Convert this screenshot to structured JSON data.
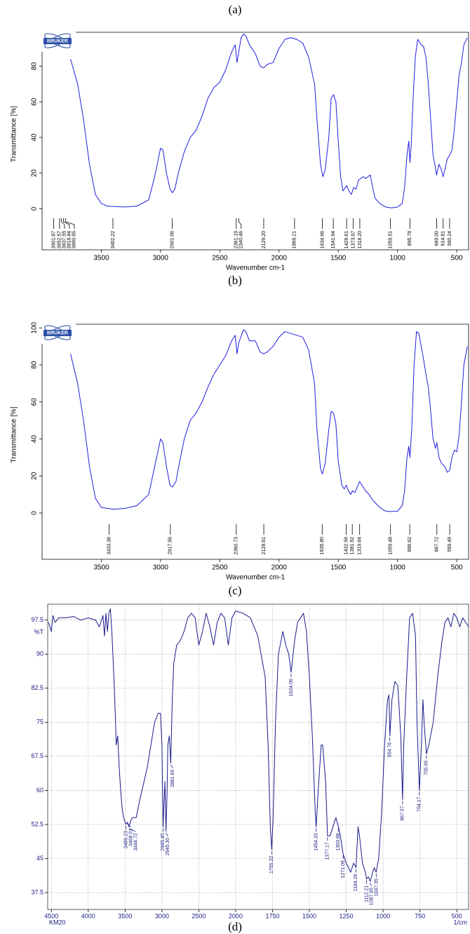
{
  "figure_labels": [
    "(a)",
    "(b)",
    "(c)",
    "(d)"
  ],
  "chart_data": [
    {
      "type": "line",
      "logo": "BRUKER",
      "xlabel": "Wavenumber cm-1",
      "ylabel": "Transmittance [%]",
      "color": "#1f1fe0",
      "xlim": [
        4000,
        400
      ],
      "ylim": [
        -23,
        99
      ],
      "xticks": [
        3500,
        3000,
        2500,
        2000,
        1500,
        1000,
        500
      ],
      "yticks": [
        0,
        20,
        40,
        60,
        80
      ],
      "x": [
        3760,
        3700,
        3650,
        3600,
        3550,
        3500,
        3450,
        3300,
        3200,
        3100,
        3050,
        3000,
        2980,
        2950,
        2920,
        2900,
        2880,
        2850,
        2800,
        2750,
        2700,
        2650,
        2600,
        2550,
        2500,
        2450,
        2400,
        2370,
        2355,
        2345,
        2320,
        2300,
        2280,
        2250,
        2200,
        2160,
        2130,
        2100,
        2050,
        2000,
        1950,
        1900,
        1850,
        1800,
        1750,
        1700,
        1680,
        1650,
        1630,
        1610,
        1580,
        1560,
        1540,
        1520,
        1500,
        1480,
        1460,
        1440,
        1430,
        1410,
        1390,
        1370,
        1350,
        1330,
        1310,
        1290,
        1270,
        1250,
        1230,
        1210,
        1190,
        1150,
        1100,
        1050,
        1000,
        960,
        940,
        920,
        905,
        895,
        885,
        870,
        850,
        830,
        800,
        780,
        760,
        740,
        720,
        700,
        685,
        670,
        650,
        630,
        615,
        600,
        580,
        560,
        540,
        520,
        500,
        480,
        460,
        440,
        410
      ],
      "values": [
        84,
        70,
        50,
        25,
        8,
        3,
        1.5,
        1,
        1.5,
        5,
        18,
        34,
        33,
        20,
        11,
        9,
        11,
        20,
        32,
        40,
        44,
        52,
        62,
        68,
        71,
        78,
        88,
        92,
        82,
        86,
        96,
        98,
        97,
        92,
        87,
        80,
        79,
        81,
        82,
        90,
        95,
        96,
        95,
        93,
        85,
        70,
        50,
        25,
        18,
        22,
        40,
        62,
        64,
        60,
        38,
        18,
        10,
        12,
        13,
        10,
        8,
        12,
        11,
        16,
        17,
        18,
        17,
        18,
        19,
        12,
        6,
        3,
        1,
        0.5,
        1,
        3,
        12,
        30,
        38,
        26,
        35,
        60,
        85,
        95,
        92,
        91,
        85,
        70,
        50,
        30,
        25,
        19,
        25,
        22,
        18,
        22,
        28,
        30,
        33,
        45,
        60,
        75,
        82,
        92,
        96
      ],
      "peak_x": [
        3901.87,
        3852.57,
        3837.55,
        3818.84,
        3800.65,
        3402.22,
        2901.06,
        2361.19,
        2340.46,
        2129.2,
        1869.21,
        1634.66,
        1541.94,
        1429.61,
        1373.97,
        1318.2,
        1059.51,
        895.78,
        669,
        614.81,
        560.24
      ],
      "peak_labels": [
        "3901.87",
        "3852.57",
        "3837.55",
        "3818.84",
        "3800.65",
        "3402.22",
        "2901.06",
        "2361.19",
        "2340.46",
        "2129.20",
        "1869.21",
        "1634.66",
        "1541.94",
        "1429.61",
        "1373.97",
        "1318.20",
        "1059.51",
        "895.78",
        "669.00",
        "614.81",
        "560.24"
      ]
    },
    {
      "type": "line",
      "logo": "BRUKER",
      "xlabel": "Wavenumber cm-1",
      "ylabel": "Transmittance [%]",
      "color": "#1f1fe0",
      "xlim": [
        4000,
        400
      ],
      "ylim": [
        -25,
        102
      ],
      "xticks": [
        3500,
        3000,
        2500,
        2000,
        1500,
        1000,
        500
      ],
      "yticks": [
        0,
        20,
        40,
        60,
        80,
        100
      ],
      "x": [
        3760,
        3700,
        3650,
        3600,
        3550,
        3500,
        3400,
        3300,
        3200,
        3100,
        3050,
        3000,
        2980,
        2950,
        2920,
        2900,
        2870,
        2850,
        2800,
        2750,
        2700,
        2650,
        2600,
        2550,
        2500,
        2450,
        2400,
        2370,
        2355,
        2340,
        2300,
        2280,
        2250,
        2200,
        2160,
        2130,
        2100,
        2050,
        2000,
        1950,
        1900,
        1850,
        1800,
        1750,
        1700,
        1680,
        1650,
        1635,
        1610,
        1580,
        1560,
        1540,
        1520,
        1500,
        1470,
        1450,
        1432,
        1415,
        1395,
        1380,
        1360,
        1340,
        1320,
        1300,
        1270,
        1240,
        1210,
        1180,
        1150,
        1100,
        1050,
        1000,
        960,
        940,
        920,
        905,
        895,
        880,
        860,
        840,
        820,
        800,
        780,
        760,
        740,
        720,
        700,
        680,
        668,
        650,
        630,
        600,
        580,
        560,
        540,
        520,
        500,
        480,
        460,
        440,
        410
      ],
      "values": [
        86,
        70,
        50,
        25,
        8,
        3,
        2,
        2.5,
        4,
        10,
        25,
        40,
        38,
        25,
        15,
        14,
        17,
        24,
        40,
        50,
        54,
        60,
        68,
        75,
        80,
        85,
        93,
        96,
        86,
        92,
        99,
        98,
        93,
        93,
        87,
        86,
        87,
        90,
        95,
        98,
        97,
        96,
        95,
        88,
        70,
        45,
        24,
        21,
        27,
        45,
        55,
        54,
        48,
        28,
        15,
        13,
        15,
        12,
        10,
        12,
        11,
        14,
        17,
        15,
        12,
        10,
        7,
        5,
        3,
        1,
        0.8,
        1,
        4,
        12,
        30,
        36,
        30,
        45,
        80,
        98,
        97,
        90,
        83,
        75,
        68,
        55,
        40,
        35,
        38,
        30,
        27,
        25,
        22,
        23,
        30,
        34,
        33,
        42,
        60,
        80,
        90
      ],
      "peak_x": [
        3433.36,
        2917.56,
        2360.73,
        2128.61,
        1635.8,
        1432.56,
        1381.92,
        1319.64,
        1059.48,
        896.62,
        667.72,
        559.49
      ],
      "peak_labels": [
        "3433.36",
        "2917.56",
        "2360.73",
        "2128.61",
        "1635.80",
        "1432.56",
        "1381.92",
        "1319.64",
        "1059.48",
        "896.62",
        "667.72",
        "559.49"
      ]
    },
    {
      "type": "line",
      "ylabel": "%T",
      "xlabel": "1/cm",
      "sample_label": "KM20",
      "color": "#1a1a8c",
      "grid": true,
      "xlim": [
        4550,
        420
      ],
      "x_scale_break": 2000,
      "x_scale_expansion": 2,
      "ylim": [
        33.8,
        101
      ],
      "xticks": [
        4500,
        4000,
        3500,
        3000,
        2500,
        2000,
        1750,
        1500,
        1250,
        1000,
        750,
        500
      ],
      "yticks": [
        37.5,
        45,
        52.5,
        60,
        67.5,
        75,
        82.5,
        90,
        97.5
      ],
      "x": [
        4540,
        4500,
        4480,
        4450,
        4400,
        4300,
        4200,
        4100,
        4000,
        3900,
        3850,
        3800,
        3780,
        3760,
        3740,
        3720,
        3700,
        3680,
        3660,
        3640,
        3620,
        3600,
        3580,
        3560,
        3540,
        3520,
        3500,
        3489,
        3468,
        3448,
        3420,
        3400,
        3350,
        3300,
        3200,
        3150,
        3100,
        3050,
        3020,
        3000,
        2985,
        2970,
        2960,
        2945,
        2930,
        2920,
        2900,
        2881,
        2860,
        2840,
        2800,
        2750,
        2700,
        2650,
        2600,
        2550,
        2500,
        2450,
        2400,
        2350,
        2300,
        2250,
        2200,
        2150,
        2100,
        2050,
        2000,
        1950,
        1900,
        1850,
        1800,
        1780,
        1765,
        1755,
        1745,
        1730,
        1710,
        1680,
        1660,
        1640,
        1624,
        1600,
        1580,
        1560,
        1540,
        1520,
        1500,
        1480,
        1460,
        1454,
        1440,
        1420,
        1410,
        1390,
        1377,
        1360,
        1340,
        1320,
        1303,
        1290,
        1271,
        1250,
        1220,
        1200,
        1184,
        1170,
        1160,
        1140,
        1120,
        1112,
        1100,
        1087,
        1070,
        1060,
        1047,
        1030,
        1010,
        990,
        970,
        960,
        954,
        940,
        920,
        900,
        880,
        868,
        860,
        840,
        820,
        800,
        780,
        770,
        754,
        740,
        730,
        720,
        706,
        690,
        660,
        630,
        600,
        580,
        560,
        540,
        520,
        500,
        480,
        460,
        440,
        420
      ],
      "values": [
        97,
        95,
        98.5,
        97,
        98,
        98,
        98.3,
        97.5,
        98,
        97.5,
        96,
        98.5,
        94,
        99,
        95,
        99,
        100,
        95,
        88,
        80,
        70,
        72,
        65,
        60,
        56,
        54,
        53,
        52.5,
        53,
        52,
        53.5,
        54,
        54,
        58,
        65,
        70,
        75,
        77,
        77,
        70,
        52,
        58,
        62,
        51,
        60,
        70,
        72,
        66,
        80,
        88,
        92,
        93,
        95,
        98,
        99,
        98,
        92,
        95,
        99,
        96,
        92,
        97,
        99,
        98,
        92,
        98,
        99.5,
        99,
        98,
        94,
        85,
        70,
        52,
        47,
        55,
        75,
        90,
        95,
        92,
        90,
        86,
        93,
        97,
        98,
        99,
        95,
        85,
        72,
        55,
        52,
        60,
        70,
        70,
        62,
        50,
        50,
        52,
        54,
        52,
        50,
        46,
        44,
        42,
        44,
        43,
        52,
        50,
        44,
        42,
        40.5,
        41,
        40,
        42,
        43,
        42,
        45,
        55,
        70,
        80,
        81,
        72,
        80,
        84,
        83,
        72,
        58,
        70,
        85,
        98,
        99,
        94,
        75,
        60,
        70,
        80,
        74,
        68,
        70,
        75,
        85,
        93,
        97,
        98,
        96,
        99,
        98,
        96,
        98,
        97,
        96
      ],
      "peak_x": [
        3489.23,
        3468.01,
        3448.72,
        2985.45,
        2945.3,
        2881.65,
        1755.22,
        1624.06,
        1454.33,
        1377.17,
        1303.88,
        1271.09,
        1184.29,
        1112.21,
        1087.85,
        1047.35,
        954.76,
        867.97,
        754.17,
        705.95
      ],
      "peak_y": [
        52.5,
        53,
        52,
        52,
        51,
        66,
        47,
        86,
        52,
        50,
        52,
        46,
        43,
        40.5,
        40,
        42,
        72,
        58,
        60,
        68
      ],
      "peak_labels": [
        "3489.23",
        "3468.01",
        "3448.72",
        "2985.45",
        "2945.30",
        "2881.65",
        "1755.22",
        "1624.06",
        "1454.33",
        "1377.17",
        "1303.88",
        "1271.09",
        "1184.29",
        "1112.21",
        "1087.85",
        "1047.35",
        "954.76",
        "867.97",
        "754.17",
        "705.95"
      ]
    }
  ]
}
